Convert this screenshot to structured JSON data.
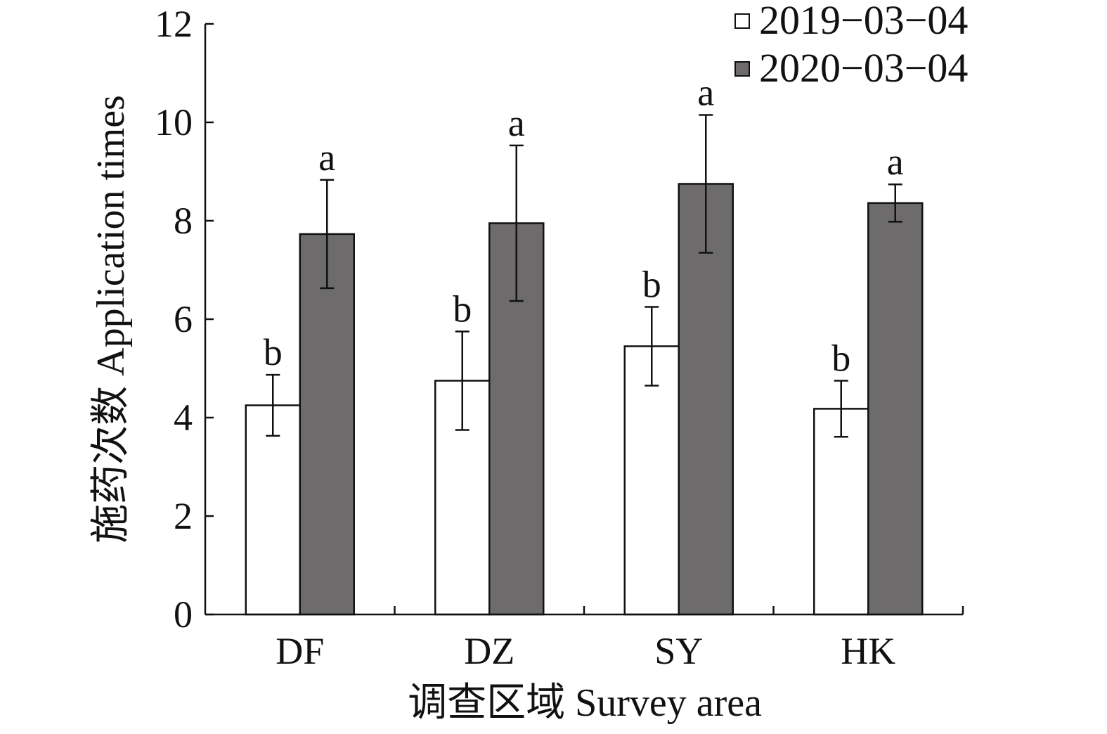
{
  "chart_data": {
    "type": "bar",
    "xlabel": "调查区域 Survey area",
    "ylabel": "施药次数 Application times",
    "ylim": [
      0,
      12
    ],
    "yticks": [
      0,
      2,
      4,
      6,
      8,
      10,
      12
    ],
    "categories": [
      "DF",
      "DZ",
      "SY",
      "HK"
    ],
    "legend_position": "top-right",
    "grid": false,
    "series": [
      {
        "name": "2019−03−04",
        "color": "#ffffff",
        "values": [
          4.25,
          4.75,
          5.45,
          4.18
        ],
        "errors": [
          0.62,
          1.0,
          0.8,
          0.57
        ],
        "sig": [
          "b",
          "b",
          "b",
          "b"
        ]
      },
      {
        "name": "2020−03−04",
        "color": "#6d6b6b",
        "values": [
          7.73,
          7.95,
          8.75,
          8.36
        ],
        "errors": [
          1.1,
          1.58,
          1.4,
          0.38
        ],
        "sig": [
          "a",
          "a",
          "a",
          "a"
        ]
      }
    ]
  }
}
